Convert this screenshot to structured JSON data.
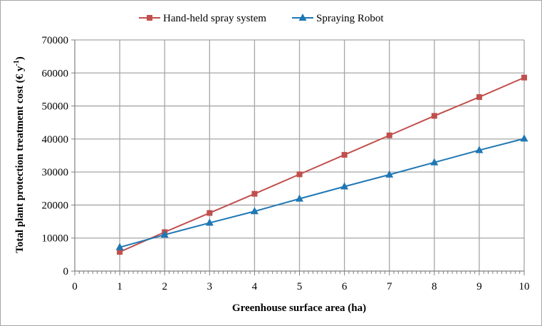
{
  "chart_data": {
    "type": "line",
    "x": [
      1,
      2,
      3,
      4,
      5,
      6,
      7,
      8,
      9,
      10
    ],
    "series": [
      {
        "name": "Hand-held spray system",
        "color": "#c0504d",
        "marker": "square",
        "values": [
          5800,
          11800,
          17600,
          23400,
          29300,
          35200,
          41100,
          47000,
          52700,
          58600
        ]
      },
      {
        "name": "Spraying Robot",
        "color": "#1f77b4",
        "marker": "triangle",
        "values": [
          7200,
          11000,
          14600,
          18100,
          21900,
          25600,
          29200,
          32900,
          36600,
          40100
        ]
      }
    ],
    "xlabel": "Greenhouse surface area (ha)",
    "ylabel_main": "Total plant protection treatment cost (€ y",
    "ylabel_sup": "-1",
    "ylabel_close": ")",
    "xlim": [
      0,
      10
    ],
    "ylim": [
      0,
      70000
    ],
    "x_ticks": [
      "0",
      "1",
      "2",
      "3",
      "4",
      "5",
      "6",
      "7",
      "8",
      "9",
      "10"
    ],
    "y_ticks": [
      "0",
      "10000",
      "20000",
      "30000",
      "40000",
      "50000",
      "60000",
      "70000"
    ],
    "grid": true,
    "legend_position": "top"
  }
}
